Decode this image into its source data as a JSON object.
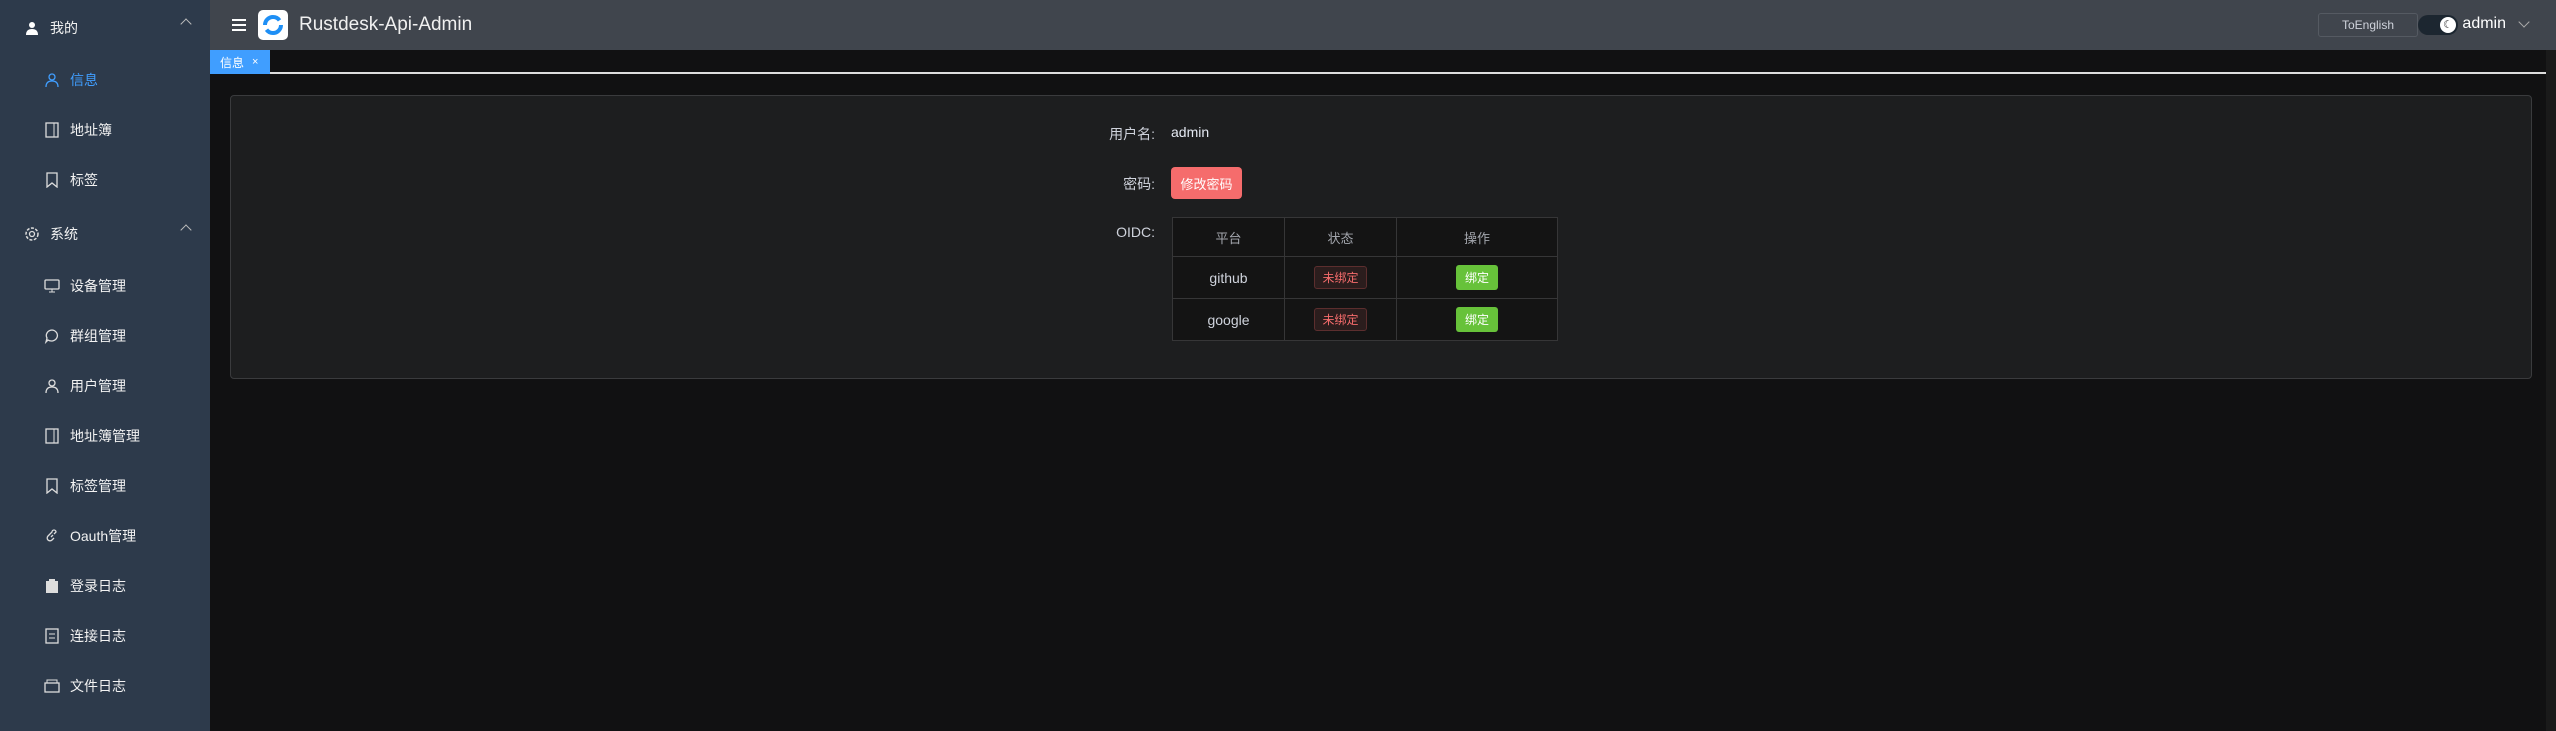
{
  "app": {
    "title": "Rustdesk-Api-Admin",
    "to_english": "ToEnglish",
    "user": "admin",
    "theme": "dark"
  },
  "sidebar": {
    "groups": [
      {
        "label": "我的",
        "icon": "user-icon",
        "items": [
          {
            "label": "信息",
            "icon": "user-outline-icon",
            "active": true
          },
          {
            "label": "地址簿",
            "icon": "notebook-icon"
          },
          {
            "label": "标签",
            "icon": "bookmark-icon"
          }
        ]
      },
      {
        "label": "系统",
        "icon": "gear-icon",
        "items": [
          {
            "label": "设备管理",
            "icon": "monitor-icon"
          },
          {
            "label": "群组管理",
            "icon": "chat-bubble-icon"
          },
          {
            "label": "用户管理",
            "icon": "user-outline-icon"
          },
          {
            "label": "地址簿管理",
            "icon": "notebook-icon"
          },
          {
            "label": "标签管理",
            "icon": "bookmark-icon"
          },
          {
            "label": "Oauth管理",
            "icon": "link-icon"
          },
          {
            "label": "登录日志",
            "icon": "clipboard-icon"
          },
          {
            "label": "连接日志",
            "icon": "document-icon"
          },
          {
            "label": "文件日志",
            "icon": "box-icon"
          }
        ]
      }
    ]
  },
  "tabs": [
    {
      "label": "信息",
      "close": "×"
    }
  ],
  "profile": {
    "username_label": "用户名:",
    "username": "admin",
    "password_label": "密码:",
    "change_password": "修改密码",
    "oidc_label": "OIDC:",
    "oidc_headers": [
      "平台",
      "状态",
      "操作"
    ],
    "oidc_rows": [
      {
        "platform": "github",
        "status": "未绑定",
        "action": "绑定"
      },
      {
        "platform": "google",
        "status": "未绑定",
        "action": "绑定"
      }
    ]
  },
  "colors": {
    "accent": "#409eff",
    "danger": "#f56c6c",
    "success": "#67c23a",
    "sidebar": "#2d3a4b"
  }
}
